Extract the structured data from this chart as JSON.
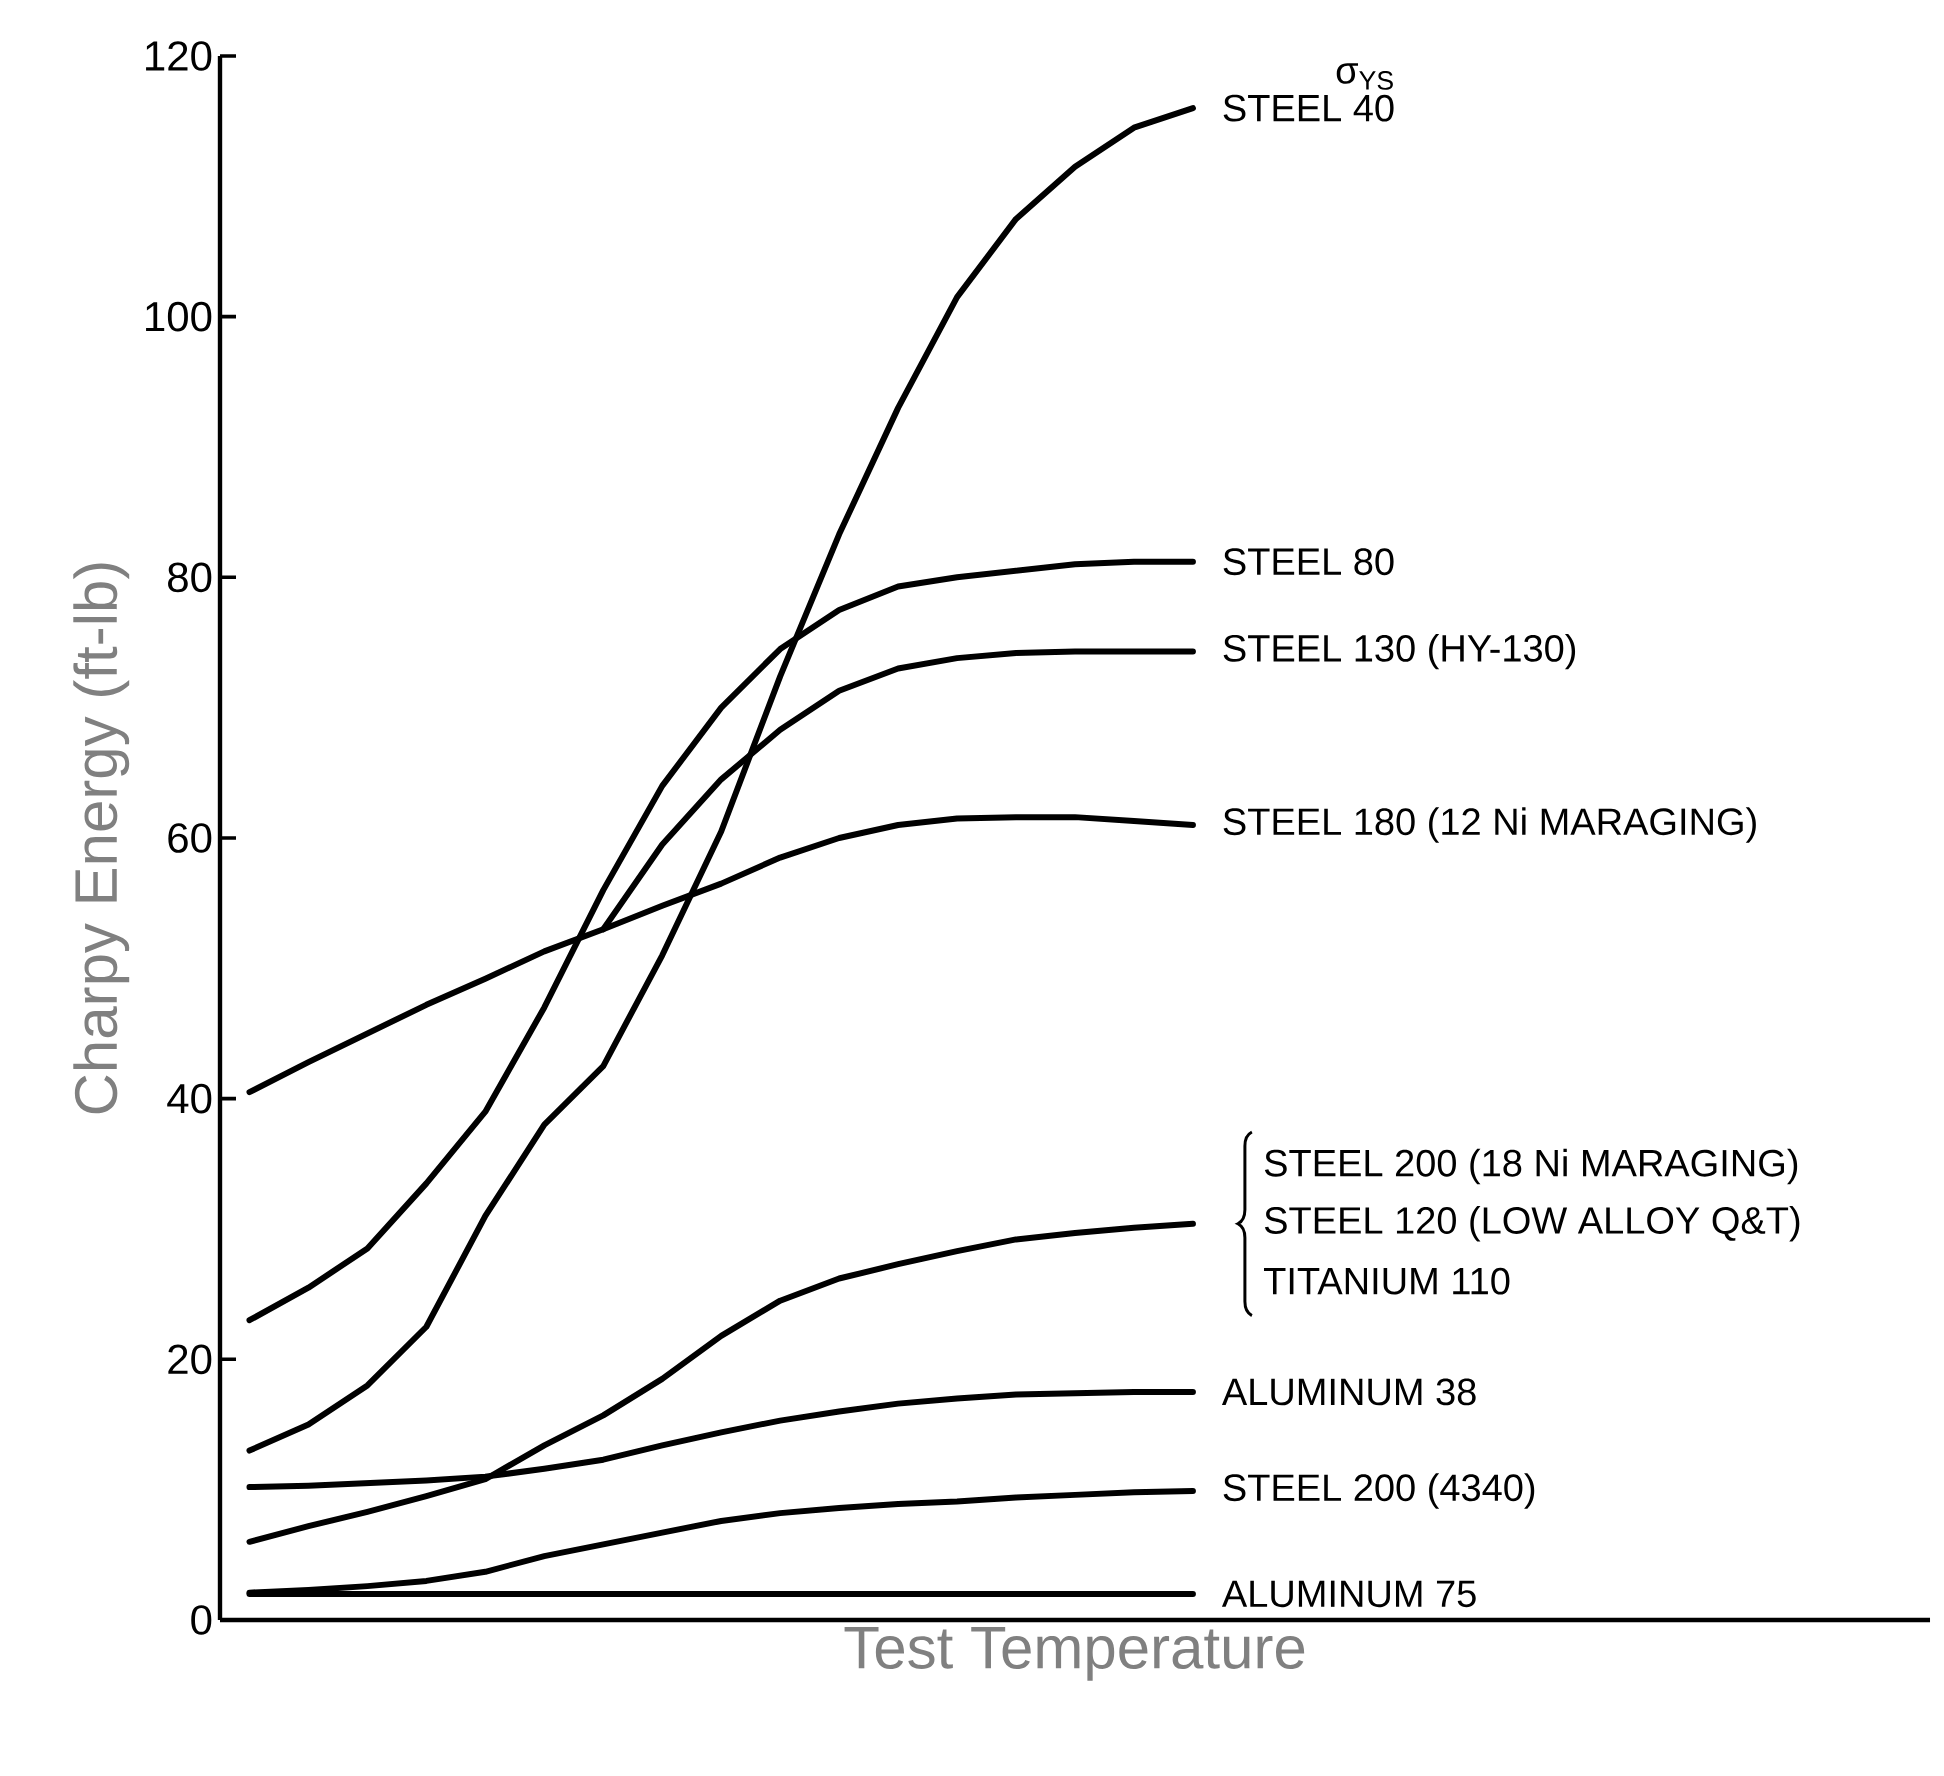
{
  "chart_data": {
    "type": "line",
    "xlabel": "Test Temperature",
    "ylabel": "Charpy Energy (ft-lb)",
    "legend_title": "σ$_{YS}$",
    "marker": "none",
    "line_style": "solid",
    "tick_labels": "y",
    "ylim": [
      0,
      120
    ],
    "yticks": [
      0,
      20,
      40,
      60,
      80,
      100,
      120
    ],
    "categories": [
      null,
      null,
      null,
      null,
      null,
      null,
      null,
      null,
      null,
      null,
      null,
      null,
      null,
      null,
      null,
      null,
      null,
      null,
      null,
      null,
      null,
      null,
      null,
      null,
      null,
      null,
      null,
      null,
      null
    ],
    "series": [
      {
        "name": "STEEL 40",
        "color": "#000000",
        "values": [
          13,
          15,
          18,
          22.5,
          31,
          38,
          42.5,
          51,
          60.5,
          72.4,
          83.3,
          93,
          101.5,
          107.5,
          111.5,
          114.5,
          116,
          null,
          null,
          null,
          null,
          null,
          null,
          null,
          null,
          null,
          null,
          null,
          null
        ]
      },
      {
        "name": "STEEL 80",
        "color": "#000000",
        "values": [
          23,
          25.5,
          28.5,
          33.5,
          39,
          47,
          56,
          64,
          70,
          74.5,
          77.5,
          79.3,
          80,
          80.5,
          81,
          81.2,
          81.2,
          null,
          null,
          null,
          null,
          null,
          null,
          null,
          null,
          null,
          null,
          null,
          null
        ]
      },
      {
        "name": "STEEL 130 (HY-130)",
        "color": "#000000",
        "values": [
          null,
          null,
          null,
          null,
          null,
          null,
          53,
          59.5,
          64.5,
          68.3,
          71.3,
          73,
          73.8,
          74.2,
          74.3,
          74.3,
          74.3,
          null,
          null,
          null,
          null,
          null,
          null,
          null,
          null,
          null,
          null,
          null,
          null
        ]
      },
      {
        "name": "STEEL 180 (12 Ni MARAGING)",
        "color": "#000000",
        "values": [
          40.5,
          42.8,
          45,
          47.2,
          49.2,
          51.3,
          53,
          54.8,
          56.5,
          58.5,
          60,
          61,
          61.5,
          61.6,
          61.6,
          61.3,
          61,
          null,
          null,
          null,
          null,
          null,
          null,
          null,
          null,
          null,
          null,
          null,
          null
        ]
      },
      {
        "name": "STEEL 200 (18 Ni MARAGING)",
        "color": "#000000",
        "values": [
          6,
          7.2,
          8.3,
          9.5,
          10.8,
          13.4,
          15.7,
          18.5,
          21.8,
          24.5,
          26.2,
          27.3,
          28.3,
          29.2,
          29.7,
          30.1,
          30.4,
          null,
          null,
          null,
          null,
          null,
          null,
          null,
          null,
          null,
          null,
          null,
          null
        ]
      },
      {
        "name": "ALUMINUM 38",
        "color": "#000000",
        "values": [
          10.2,
          10.3,
          10.5,
          10.7,
          11,
          11.6,
          12.3,
          13.4,
          14.4,
          15.3,
          16,
          16.6,
          17,
          17.3,
          17.4,
          17.5,
          17.5,
          null,
          null,
          null,
          null,
          null,
          null,
          null,
          null,
          null,
          null,
          null,
          null
        ]
      },
      {
        "name": "STEEL 200 (4340)",
        "color": "#000000",
        "values": [
          2.1,
          2.3,
          2.6,
          3,
          3.7,
          4.9,
          5.8,
          6.7,
          7.6,
          8.2,
          8.6,
          8.9,
          9.1,
          9.4,
          9.6,
          9.8,
          9.9,
          null,
          null,
          null,
          null,
          null,
          null,
          null,
          null,
          null,
          null,
          null,
          null
        ]
      },
      {
        "name": "ALUMINUM 75",
        "color": "#000000",
        "values": [
          2,
          2,
          2,
          2,
          2,
          2,
          2,
          2,
          2,
          2,
          2,
          2,
          2,
          2,
          2,
          2,
          2,
          null,
          null,
          null,
          null,
          null,
          null,
          null,
          null,
          null,
          null,
          null,
          null
        ]
      }
    ],
    "annotations": [
      "STEEL 120 (LOW ALLOY Q&T)",
      "TITANIUM 110"
    ]
  }
}
